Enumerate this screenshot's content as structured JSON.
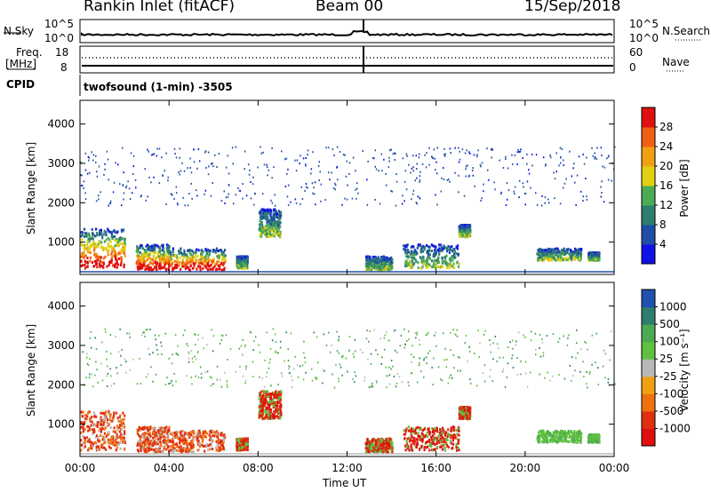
{
  "header": {
    "station": "Rankin Inlet (fitACF)",
    "beam": "Beam 00",
    "date": "15/Sep/2018"
  },
  "summary_panels": {
    "nsky_label": "N.Sky",
    "nsky_ticks": [
      "10^5",
      "10^0"
    ],
    "nsearch_label": "N.Search",
    "nsearch_ticks": [
      "10^5",
      "10^0"
    ],
    "freq_label_1": "Freq.",
    "freq_label_2": "[MHz]",
    "freq_ticks": [
      "18",
      "8"
    ],
    "nave_label": "Nave",
    "nave_ticks": [
      "60",
      "0"
    ],
    "cpid_label": "CPID",
    "program": "twofsound (1-min) -3505"
  },
  "chart_data": [
    {
      "type": "heatmap",
      "title": "Power",
      "ylabel": "Slant Range [km]",
      "xlabel": "Time UT",
      "x_ticks": [
        "00:00",
        "04:00",
        "08:00",
        "12:00",
        "16:00",
        "20:00",
        "00:00"
      ],
      "y_ticks": [
        "1000",
        "2000",
        "3000",
        "4000"
      ],
      "ylim": [
        180,
        4600
      ],
      "xlim_hours": [
        0,
        24
      ],
      "colorbar_label": "Power [dB]",
      "colorbar_ticks": [
        "4",
        "8",
        "12",
        "16",
        "20",
        "24",
        "28"
      ],
      "colors": [
        "#1010e8",
        "#1e4ea8",
        "#2e7d6e",
        "#4caa55",
        "#e0d010",
        "#f0a010",
        "#f06010",
        "#e01010"
      ]
    },
    {
      "type": "heatmap",
      "title": "Velocity",
      "ylabel": "Slant Range [km]",
      "xlabel": "Time UT",
      "x_ticks": [
        "00:00",
        "04:00",
        "08:00",
        "12:00",
        "16:00",
        "20:00",
        "00:00"
      ],
      "y_ticks": [
        "1000",
        "2000",
        "3000",
        "4000"
      ],
      "ylim": [
        180,
        4600
      ],
      "xlim_hours": [
        0,
        24
      ],
      "colorbar_label": "Velocity [m s⁻¹]",
      "colorbar_ticks": [
        "1000",
        "500",
        "100",
        "25",
        "-25",
        "-100",
        "-500",
        "-1000"
      ],
      "colors": [
        "#2050b0",
        "#2e7d6e",
        "#4caa55",
        "#60c040",
        "#b8b8b8",
        "#f0a010",
        "#f07010",
        "#e03010",
        "#e01010"
      ]
    }
  ],
  "footer": {
    "xlabel": "Time UT"
  }
}
